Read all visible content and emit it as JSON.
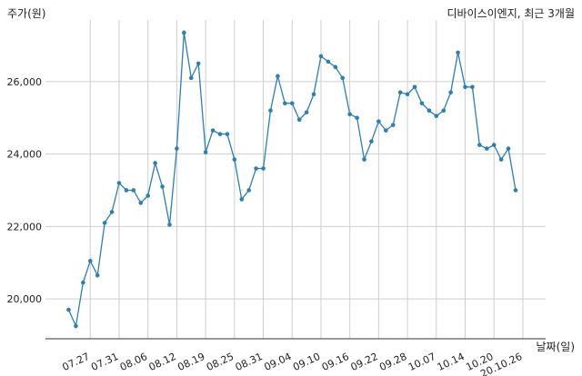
{
  "chart_data": {
    "type": "line",
    "title": "디바이스이엔지, 최근 3개월",
    "ylabel": "주가(원)",
    "xlabel": "날짜(일)",
    "ylim": [
      18900,
      27700
    ],
    "yticks": [
      20000,
      22000,
      24000,
      26000
    ],
    "ytick_labels": [
      "20,000",
      "22,000",
      "24,000",
      "26,000"
    ],
    "xticks": [
      {
        "index": 3,
        "label": "07.27"
      },
      {
        "index": 7,
        "label": "07.31"
      },
      {
        "index": 11,
        "label": "08.06"
      },
      {
        "index": 15,
        "label": "08.12"
      },
      {
        "index": 19,
        "label": "08.19"
      },
      {
        "index": 23,
        "label": "08.25"
      },
      {
        "index": 27,
        "label": "08.31"
      },
      {
        "index": 31,
        "label": "09.04"
      },
      {
        "index": 35,
        "label": "09.10"
      },
      {
        "index": 39,
        "label": "09.16"
      },
      {
        "index": 43,
        "label": "09.22"
      },
      {
        "index": 47,
        "label": "09.28"
      },
      {
        "index": 51,
        "label": "10.07"
      },
      {
        "index": 55,
        "label": "10.14"
      },
      {
        "index": 59,
        "label": "10.20"
      },
      {
        "index": 63,
        "label": "20.10.26"
      }
    ],
    "grid": true,
    "line_color": "#2e7fb0",
    "series": [
      {
        "values": [
          19700,
          19250,
          20450,
          21050,
          20650,
          22100,
          22400,
          23200,
          23000,
          23000,
          22650,
          22850,
          23750,
          23100,
          22050,
          24150,
          27350,
          26100,
          26500,
          24050,
          24650,
          24550,
          24550,
          23850,
          22750,
          23000,
          23600,
          23600,
          25200,
          26150,
          25400,
          25400,
          24950,
          25150,
          25650,
          26700,
          26550,
          26400,
          26100,
          25100,
          25000,
          23850,
          24350,
          24900,
          24650,
          24800,
          25700,
          25650,
          25850,
          25400,
          25200,
          25050,
          25200,
          25700,
          26800,
          25850,
          25850,
          24250,
          24150,
          24250,
          23850,
          24150,
          23000
        ]
      }
    ]
  }
}
